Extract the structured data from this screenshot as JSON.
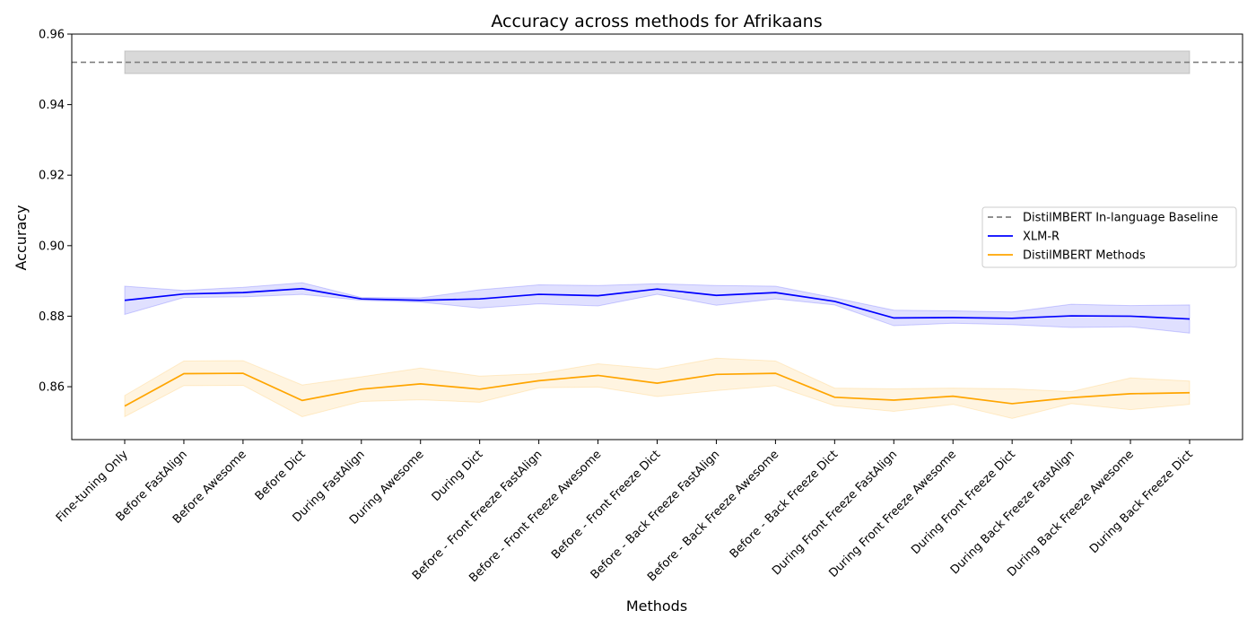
{
  "chart_data": {
    "type": "line",
    "title": "Accuracy across methods for Afrikaans",
    "xlabel": "Methods",
    "ylabel": "Accuracy",
    "ylim": [
      0.845,
      0.96
    ],
    "yticks": [
      0.86,
      0.88,
      0.9,
      0.92,
      0.94,
      0.96
    ],
    "ytick_labels": [
      "0.86",
      "0.88",
      "0.90",
      "0.92",
      "0.94",
      "0.96"
    ],
    "categories": [
      "Fine-tuning Only",
      "Before FastAlign",
      "Before Awesome",
      "Before Dict",
      "During FastAlign",
      "During Awesome",
      "During Dict",
      "Before - Front Freeze FastAlign",
      "Before - Front Freeze Awesome",
      "Before - Front Freeze Dict",
      "Before - Back Freeze FastAlign",
      "Before - Back Freeze Awesome",
      "Before - Back Freeze Dict",
      "During Front Freeze FastAlign",
      "During Front Freeze Awesome",
      "During Front Freeze Dict",
      "During Back Freeze FastAlign",
      "During Back Freeze Awesome",
      "During Back Freeze Dict"
    ],
    "baseline": {
      "name": "DistilMBERT In-language Baseline",
      "value": 0.952,
      "band": [
        0.9488,
        0.9552
      ],
      "color": "#808080"
    },
    "series": [
      {
        "name": "XLM-R",
        "color": "#0000ff",
        "values": [
          0.8845,
          0.8863,
          0.8867,
          0.8878,
          0.8849,
          0.8845,
          0.8849,
          0.8862,
          0.8858,
          0.8877,
          0.8859,
          0.8867,
          0.8842,
          0.8795,
          0.8796,
          0.8794,
          0.8801,
          0.88,
          0.8792
        ],
        "lower": [
          0.8805,
          0.8853,
          0.8855,
          0.8862,
          0.8845,
          0.884,
          0.8823,
          0.8835,
          0.8829,
          0.8862,
          0.8831,
          0.8849,
          0.8832,
          0.8773,
          0.878,
          0.8776,
          0.8768,
          0.877,
          0.8752
        ],
        "upper": [
          0.8885,
          0.8873,
          0.8882,
          0.8895,
          0.8853,
          0.8852,
          0.8875,
          0.8889,
          0.8887,
          0.8892,
          0.8887,
          0.8885,
          0.8852,
          0.8817,
          0.8815,
          0.8812,
          0.8834,
          0.883,
          0.8832
        ]
      },
      {
        "name": "DistilMBERT Methods",
        "color": "#ffa500",
        "values": [
          0.8545,
          0.8637,
          0.8638,
          0.8561,
          0.8593,
          0.8608,
          0.8593,
          0.8617,
          0.8632,
          0.861,
          0.8635,
          0.8638,
          0.857,
          0.8562,
          0.8573,
          0.8552,
          0.8569,
          0.858,
          0.8583
        ],
        "lower": [
          0.8515,
          0.8603,
          0.8604,
          0.8515,
          0.8558,
          0.8563,
          0.8556,
          0.8597,
          0.8599,
          0.8572,
          0.8589,
          0.8603,
          0.8546,
          0.853,
          0.855,
          0.851,
          0.8552,
          0.8535,
          0.855
        ],
        "upper": [
          0.8575,
          0.8673,
          0.8674,
          0.8605,
          0.8628,
          0.8653,
          0.863,
          0.8637,
          0.8665,
          0.865,
          0.8681,
          0.8673,
          0.8596,
          0.8594,
          0.8596,
          0.8594,
          0.8586,
          0.8625,
          0.8616
        ]
      }
    ],
    "legend": {
      "placement": "center-right",
      "entries": [
        "DistilMBERT In-language Baseline",
        "XLM-R",
        "DistilMBERT Methods"
      ]
    },
    "grid": false
  }
}
